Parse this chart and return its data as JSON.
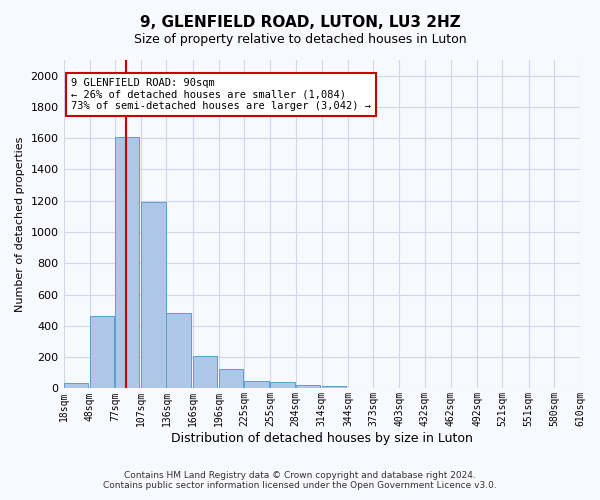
{
  "title": "9, GLENFIELD ROAD, LUTON, LU3 2HZ",
  "subtitle": "Size of property relative to detached houses in Luton",
  "xlabel": "Distribution of detached houses by size in Luton",
  "ylabel": "Number of detached properties",
  "footer_line1": "Contains HM Land Registry data © Crown copyright and database right 2024.",
  "footer_line2": "Contains public sector information licensed under the Open Government Licence v3.0.",
  "annotation_title": "9 GLENFIELD ROAD: 90sqm",
  "annotation_line2": "← 26% of detached houses are smaller (1,084)",
  "annotation_line3": "73% of semi-detached houses are larger (3,042) →",
  "property_size_sqm": 90,
  "bar_color": "#aec6e8",
  "bar_edge_color": "#5a9fd4",
  "red_line_color": "#cc0000",
  "annotation_box_color": "#cc0000",
  "grid_color": "#d0d8e8",
  "background_color": "#f8f8ff",
  "bin_lefts": [
    18,
    48,
    77,
    107,
    136,
    166,
    196,
    225,
    255,
    284,
    314,
    344,
    373,
    403,
    432,
    462,
    492,
    521,
    551,
    580
  ],
  "bin_width": 29,
  "bin_labels": [
    "18sqm",
    "48sqm",
    "77sqm",
    "107sqm",
    "136sqm",
    "166sqm",
    "196sqm",
    "225sqm",
    "255sqm",
    "284sqm",
    "314sqm",
    "344sqm",
    "373sqm",
    "403sqm",
    "432sqm",
    "462sqm",
    "492sqm",
    "521sqm",
    "551sqm",
    "580sqm",
    "610sqm"
  ],
  "counts": [
    35,
    460,
    1610,
    1195,
    485,
    210,
    125,
    50,
    40,
    25,
    15,
    0,
    0,
    0,
    0,
    0,
    0,
    0,
    0,
    0
  ],
  "xlim_min": 18,
  "xlim_max": 610,
  "ylim": [
    0,
    2100
  ],
  "yticks": [
    0,
    200,
    400,
    600,
    800,
    1000,
    1200,
    1400,
    1600,
    1800,
    2000
  ]
}
